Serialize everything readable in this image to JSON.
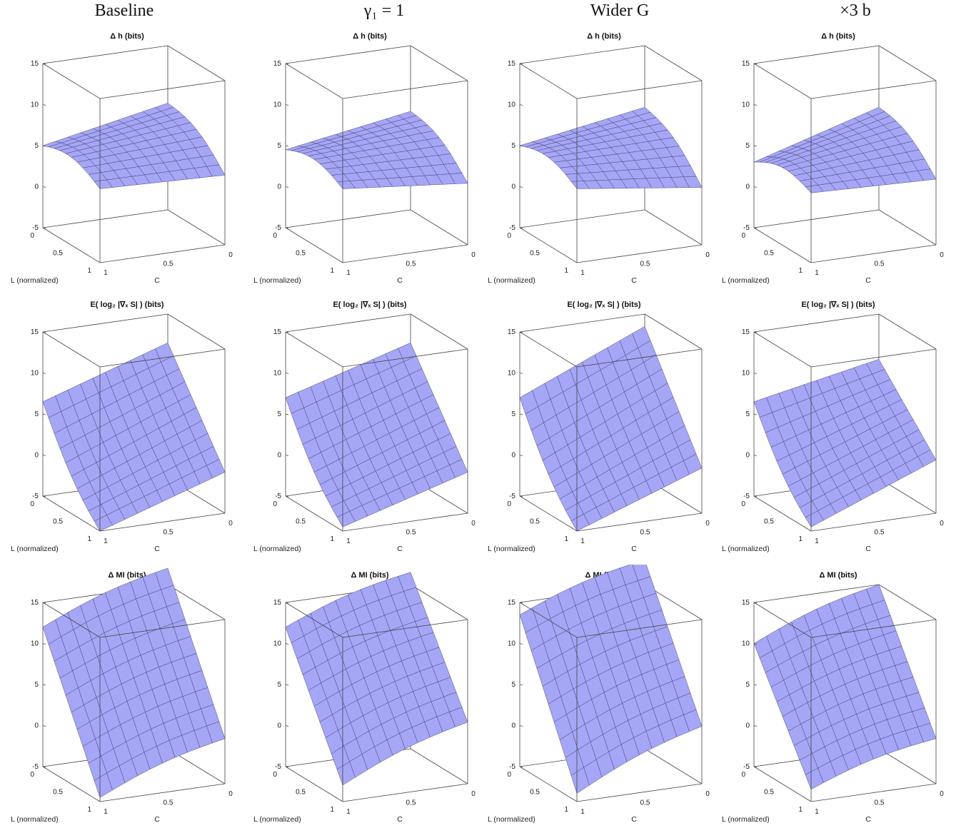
{
  "columns": [
    {
      "label": "Baseline",
      "math": false
    },
    {
      "label": "γ₁ = 1",
      "math": true
    },
    {
      "label": "Wider G",
      "math": true
    },
    {
      "label": "×3 b",
      "math": true
    }
  ],
  "chart_data": [
    {
      "type": "surface",
      "row_title": {
        "main": "Δ h",
        "unit": "(bits)"
      },
      "xlabel": "L (normalized)",
      "ylabel": "C",
      "zlim": [
        -5,
        15
      ],
      "z_ticks": [
        "15",
        "10",
        "5",
        "0",
        "-5"
      ],
      "x_ticks": [
        "0",
        "0.5",
        "1"
      ],
      "y_ticks": [
        "1",
        "0.5",
        "0"
      ],
      "grid": true,
      "series": [
        {
          "column": "Baseline",
          "z_corners": {
            "L0_C1": 5.0,
            "L0_C0": 8.0,
            "L1_C1": 4.0,
            "L1_C0": 3.5
          }
        },
        {
          "column": "γ₁ = 1",
          "z_corners": {
            "L0_C1": 4.5,
            "L0_C0": 7.0,
            "L1_C1": 4.0,
            "L1_C0": 2.5
          }
        },
        {
          "column": "Wider G",
          "z_corners": {
            "L0_C1": 5.0,
            "L0_C0": 7.5,
            "L1_C1": 4.0,
            "L1_C0": 2.0
          }
        },
        {
          "column": "×3 b",
          "z_corners": {
            "L0_C1": 3.0,
            "L0_C0": 7.5,
            "L1_C1": 3.5,
            "L1_C0": 3.0
          }
        }
      ]
    },
    {
      "type": "surface",
      "row_title": {
        "main": "E( log₂ |∇ₓ S| )",
        "unit": "(bits)"
      },
      "xlabel": "L (normalized)",
      "ylabel": "C",
      "zlim": [
        -5,
        15
      ],
      "z_ticks": [
        "15",
        "10",
        "5",
        "0",
        "-5"
      ],
      "x_ticks": [
        "0",
        "0.5",
        "1"
      ],
      "y_ticks": [
        "1",
        "0.5",
        "0"
      ],
      "grid": true,
      "series": [
        {
          "column": "Baseline",
          "z_corners": {
            "L0_C1": 6.5,
            "L0_C0": 11.5,
            "L1_C1": -5.0,
            "L1_C0": 0.0
          }
        },
        {
          "column": "γ₁ = 1",
          "z_corners": {
            "L0_C1": 7.0,
            "L0_C0": 11.5,
            "L1_C1": -4.5,
            "L1_C0": 0.0
          }
        },
        {
          "column": "Wider G",
          "z_corners": {
            "L0_C1": 7.0,
            "L0_C0": 13.5,
            "L1_C1": -5.0,
            "L1_C0": 0.5
          }
        },
        {
          "column": "×3 b",
          "z_corners": {
            "L0_C1": 6.5,
            "L0_C0": 9.5,
            "L1_C1": -4.5,
            "L1_C0": 1.5
          }
        }
      ]
    },
    {
      "type": "surface",
      "row_title": {
        "main": "Δ MI",
        "unit": "(bits)"
      },
      "xlabel": "L (normalized)",
      "ylabel": "C",
      "zlim": [
        -5,
        15
      ],
      "z_ticks": [
        "15",
        "10",
        "5",
        "0",
        "-5"
      ],
      "x_ticks": [
        "0",
        "0.5",
        "1"
      ],
      "y_ticks": [
        "1",
        "0.5",
        "0"
      ],
      "grid": true,
      "series": [
        {
          "column": "Baseline",
          "z_corners": {
            "L0_C1": 12.0,
            "L0_C0": 17.0,
            "L1_C1": -4.5,
            "L1_C0": 0.5
          }
        },
        {
          "column": "γ₁ = 1",
          "z_corners": {
            "L0_C1": 12.0,
            "L0_C0": 16.5,
            "L1_C1": -3.0,
            "L1_C0": 2.5
          }
        },
        {
          "column": "Wider G",
          "z_corners": {
            "L0_C1": 13.5,
            "L0_C0": 18.0,
            "L1_C1": -4.0,
            "L1_C0": 2.0
          }
        },
        {
          "column": "×3 b",
          "z_corners": {
            "L0_C1": 10.0,
            "L0_C0": 15.0,
            "L1_C1": -3.5,
            "L1_C0": 0.5
          }
        }
      ]
    }
  ]
}
